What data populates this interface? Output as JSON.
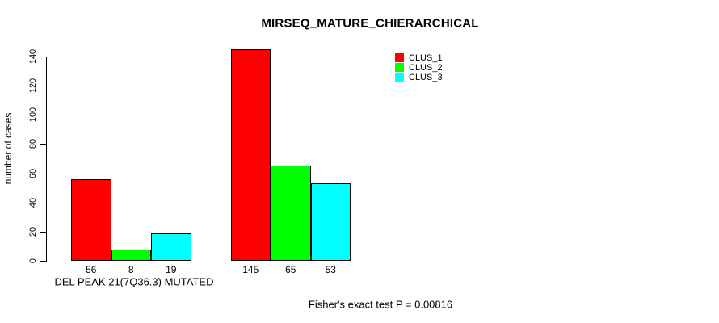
{
  "chart_data": {
    "type": "bar",
    "title": "MIRSEQ_MATURE_CHIERARCHICAL",
    "ylabel": "number of cases",
    "xlabel": "",
    "ylim": [
      0,
      150
    ],
    "yticks": [
      0,
      20,
      40,
      60,
      80,
      100,
      120,
      140
    ],
    "grid": false,
    "categories": [
      "DEL PEAK 21(7Q36.3) MUTATED",
      ""
    ],
    "series": [
      {
        "name": "CLUS_1",
        "color": "#FF0000",
        "values": [
          56,
          145
        ]
      },
      {
        "name": "CLUS_2",
        "color": "#00FF00",
        "values": [
          8,
          65
        ]
      },
      {
        "name": "CLUS_3",
        "color": "#00FFFF",
        "values": [
          19,
          53
        ]
      }
    ],
    "bar_value_labels": [
      [
        56,
        8,
        19
      ],
      [
        145,
        65,
        53
      ]
    ],
    "legend": {
      "position": "top-right",
      "entries": [
        {
          "label": "CLUS_1",
          "color": "#FF0000"
        },
        {
          "label": "CLUS_2",
          "color": "#00FF00"
        },
        {
          "label": "CLUS_3",
          "color": "#00FFFF"
        }
      ]
    },
    "annotation": "Fisher's exact test P = 0.00816"
  },
  "colors": {
    "background": "#FFFFFF",
    "axis": "#000000",
    "bar_border": "#000000"
  }
}
